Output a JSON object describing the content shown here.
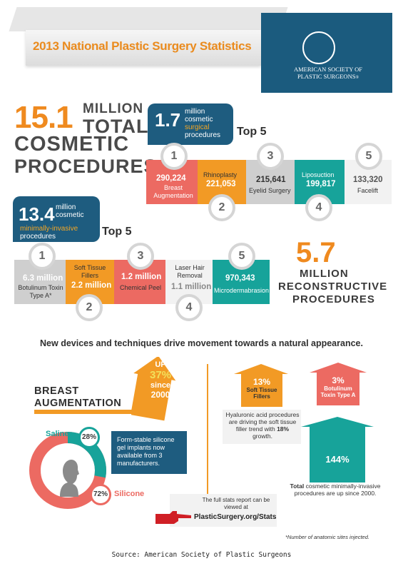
{
  "header": {
    "title": "2013 National Plastic Surgery Statistics",
    "logo_text_line1": "AMERICAN SOCIETY OF",
    "logo_text_line2": "PLASTIC SURGEONS",
    "logo_mark": "®"
  },
  "cosmetic": {
    "number": "15.1",
    "million": "MILLION",
    "total": "TOTAL",
    "line2": "COSMETIC",
    "line3": "PROCEDURES"
  },
  "surgical": {
    "number": "1.7",
    "line1": "million",
    "line2": "cosmetic",
    "line3": "surgical",
    "line4": "procedures",
    "top_label": "Top 5",
    "items": [
      {
        "rank": "1",
        "value": "290,224",
        "label1": "Breast",
        "label2": "Augmentation"
      },
      {
        "rank": "2",
        "value": "221,053",
        "label1": "Rhinoplasty",
        "label2": ""
      },
      {
        "rank": "3",
        "value": "215,641",
        "label1": "Eyelid Surgery",
        "label2": ""
      },
      {
        "rank": "4",
        "value": "199,817",
        "label1": "Liposuction",
        "label2": ""
      },
      {
        "rank": "5",
        "value": "133,320",
        "label1": "Facelift",
        "label2": ""
      }
    ]
  },
  "minimally": {
    "number": "13.4",
    "line1": "million",
    "line2": "cosmetic",
    "line3": "minimally-invasive",
    "line4": "procedures",
    "top_label": "Top 5",
    "items": [
      {
        "rank": "1",
        "value": "6.3 million",
        "label1": "Botulinum Toxin",
        "label2": "Type A*"
      },
      {
        "rank": "2",
        "value": "2.2 million",
        "label1": "Soft Tissue",
        "label2": "Fillers"
      },
      {
        "rank": "3",
        "value": "1.2 million",
        "label1": "Chemical Peel",
        "label2": ""
      },
      {
        "rank": "4",
        "value": "1.1 million",
        "label1": "Laser Hair",
        "label2": "Removal"
      },
      {
        "rank": "5",
        "value": "970,343",
        "label1": "Microdermabrasion",
        "label2": ""
      }
    ]
  },
  "reconstructive": {
    "number": "5.7",
    "million": "MILLION",
    "line2": "RECONSTRUCTIVE",
    "line3": "PROCEDURES"
  },
  "tagline": "New devices and techniques drive movement towards a natural appearance.",
  "breast": {
    "title1": "BREAST",
    "title2": "AUGMENTATION",
    "up": "UP",
    "percent": "37%",
    "since": "since",
    "year": "2000",
    "saline_label": "Saline",
    "saline_pct": "28%",
    "silicone_label": "Silicone",
    "silicone_pct": "72%",
    "saline_value": 28,
    "silicone_value": 72,
    "gel_text": "Form-stable silicone gel implants now available from 3 manufacturers."
  },
  "fillers": {
    "pct": "13%",
    "label1": "Soft Tissue",
    "label2": "Fillers",
    "text1": "Hyaluronic acid procedures are driving the soft tissue filler trend with",
    "text_bold": "18%",
    "text2": "growth."
  },
  "botox": {
    "pct": "3%",
    "label1": "Botulinum",
    "label2": "Toxin Type A"
  },
  "total_mi": {
    "pct": "144%",
    "bold": "Total",
    "text": "cosmetic minimally-invasive procedures are up since 2000."
  },
  "stats": {
    "text": "The full stats report can be viewed at",
    "link": "PlasticSurgery.org/Stats"
  },
  "footnote": "*Number of anatomic sites injected.",
  "source": "Source: American Society of Plastic Surgeons",
  "colors": {
    "orange": "#f29a25",
    "red": "#ec6a62",
    "teal": "#17a39a",
    "navy": "#1e5c7f",
    "gray": "#cfcfcf"
  }
}
